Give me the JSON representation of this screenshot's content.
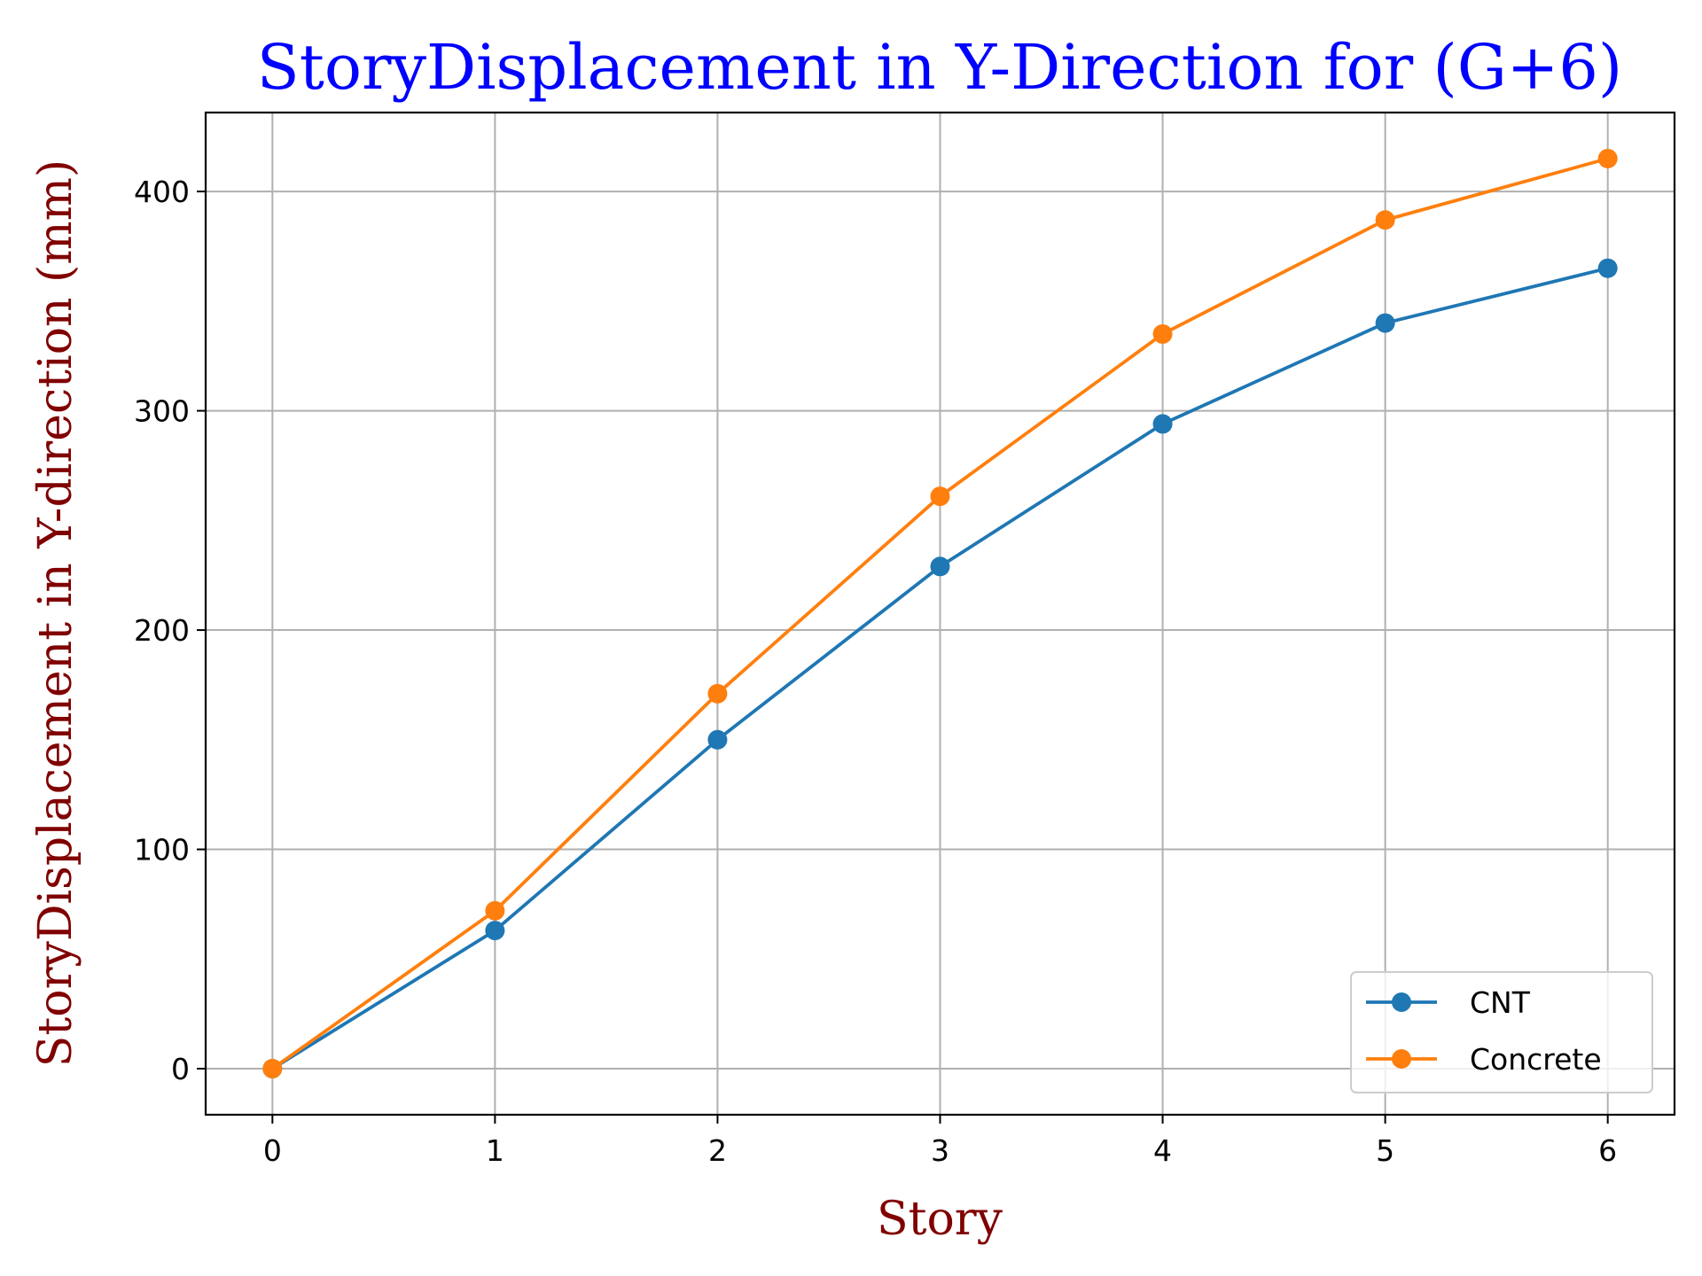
{
  "chart_data": {
    "type": "line",
    "title": "StoryDisplacement in Y-Direction for (G+6)",
    "xlabel": "Story",
    "ylabel": "StoryDisplacement in Y-direction (mm)",
    "x": [
      0,
      1,
      2,
      3,
      4,
      5,
      6
    ],
    "xlim": [
      -0.3,
      6.3
    ],
    "ylim": [
      -21,
      436
    ],
    "xticks": [
      0,
      1,
      2,
      3,
      4,
      5,
      6
    ],
    "yticks": [
      0,
      100,
      200,
      300,
      400
    ],
    "grid": true,
    "legend_position": "lower-right",
    "series": [
      {
        "name": "CNT",
        "color": "#1f77b4",
        "marker": "circle",
        "values": [
          0,
          63,
          150,
          229,
          294,
          340,
          365
        ]
      },
      {
        "name": "Concrete",
        "color": "#ff7f0e",
        "marker": "circle",
        "values": [
          0,
          72,
          171,
          261,
          335,
          387,
          415
        ]
      }
    ],
    "colors": {
      "title": "#0000ff",
      "axis_label": "#800000",
      "grid": "#b0b0b0",
      "axes": "#000000"
    }
  }
}
